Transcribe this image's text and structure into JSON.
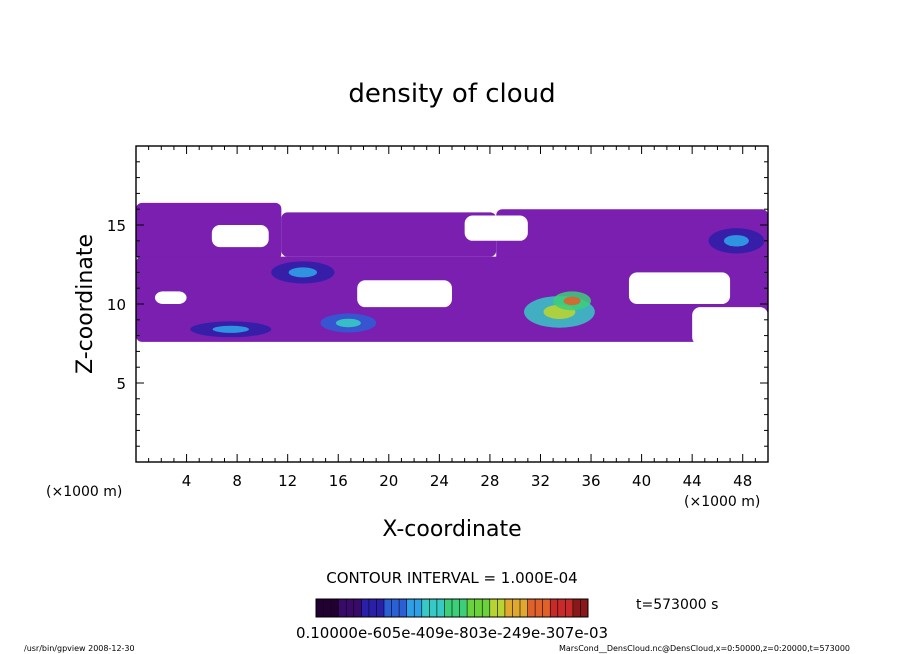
{
  "chart_data": {
    "type": "heatmap",
    "title": "density of cloud",
    "xlabel": "X-coordinate",
    "ylabel": "Z-coordinate",
    "x_unit": "(×1000 m)",
    "x_unit_right": "(×1000 m)",
    "xlim": [
      0,
      50
    ],
    "ylim": [
      0,
      20
    ],
    "x_ticks": [
      4,
      8,
      12,
      16,
      20,
      24,
      28,
      32,
      36,
      40,
      44,
      48
    ],
    "y_ticks": [
      5,
      10,
      15
    ],
    "contour_interval": "CONTOUR INTERVAL = 1.000E-04",
    "time_label": "t=573000 s",
    "colorbar_labels": "0.10000e-605e-409e-803e-249e-307e-03",
    "colorbar_colors": [
      "#220033",
      "#3a0a6b",
      "#2a1fa8",
      "#2b5fd6",
      "#2fa0e8",
      "#37c9c4",
      "#3ccf7a",
      "#6ad23a",
      "#b8d432",
      "#e0a82e",
      "#e0612a",
      "#c82a2a",
      "#8a1818"
    ],
    "cloud_color": "#7a1fb0",
    "cloud_band": {
      "x_range": [
        0,
        50
      ],
      "z_range": [
        7.5,
        16.5
      ]
    },
    "regions": [
      {
        "x0": 0.0,
        "x1": 11.5,
        "z0": 12.8,
        "z1": 16.4
      },
      {
        "x0": 11.5,
        "x1": 28.5,
        "z0": 13.0,
        "z1": 15.8
      },
      {
        "x0": 28.5,
        "x1": 50.0,
        "z0": 12.5,
        "z1": 16.0
      },
      {
        "x0": 0.0,
        "x1": 50.0,
        "z0": 7.6,
        "z1": 13.0
      }
    ],
    "clear_patches": [
      {
        "x0": 6.0,
        "x1": 10.5,
        "z0": 13.6,
        "z1": 15.0
      },
      {
        "x0": 26.0,
        "x1": 31.0,
        "z0": 14.0,
        "z1": 15.6
      },
      {
        "x0": 17.5,
        "x1": 25.0,
        "z0": 9.8,
        "z1": 11.5
      },
      {
        "x0": 1.5,
        "x1": 4.0,
        "z0": 10.0,
        "z1": 10.8
      },
      {
        "x0": 39.0,
        "x1": 47.0,
        "z0": 10.0,
        "z1": 12.0
      },
      {
        "x0": 44.0,
        "x1": 50.0,
        "z0": 7.4,
        "z1": 9.8
      }
    ],
    "dense_spots": [
      {
        "x": 13.2,
        "z": 12.0,
        "rx": 2.5,
        "rz": 0.7,
        "level": 0.35
      },
      {
        "x": 16.8,
        "z": 8.8,
        "rx": 2.2,
        "rz": 0.6,
        "level": 0.4
      },
      {
        "x": 7.5,
        "z": 8.4,
        "rx": 3.2,
        "rz": 0.5,
        "level": 0.3
      },
      {
        "x": 33.5,
        "z": 9.5,
        "rx": 2.8,
        "rz": 1.0,
        "level": 0.65
      },
      {
        "x": 34.5,
        "z": 10.2,
        "rx": 1.5,
        "rz": 0.6,
        "level": 0.8
      },
      {
        "x": 47.5,
        "z": 14.0,
        "rx": 2.2,
        "rz": 0.8,
        "level": 0.35
      }
    ],
    "footer_left": "/usr/bin/gpview   2008-12-30",
    "footer_right": "MarsCond__DensCloud.nc@DensCloud,x=0:50000,z=0:20000,t=573000"
  }
}
